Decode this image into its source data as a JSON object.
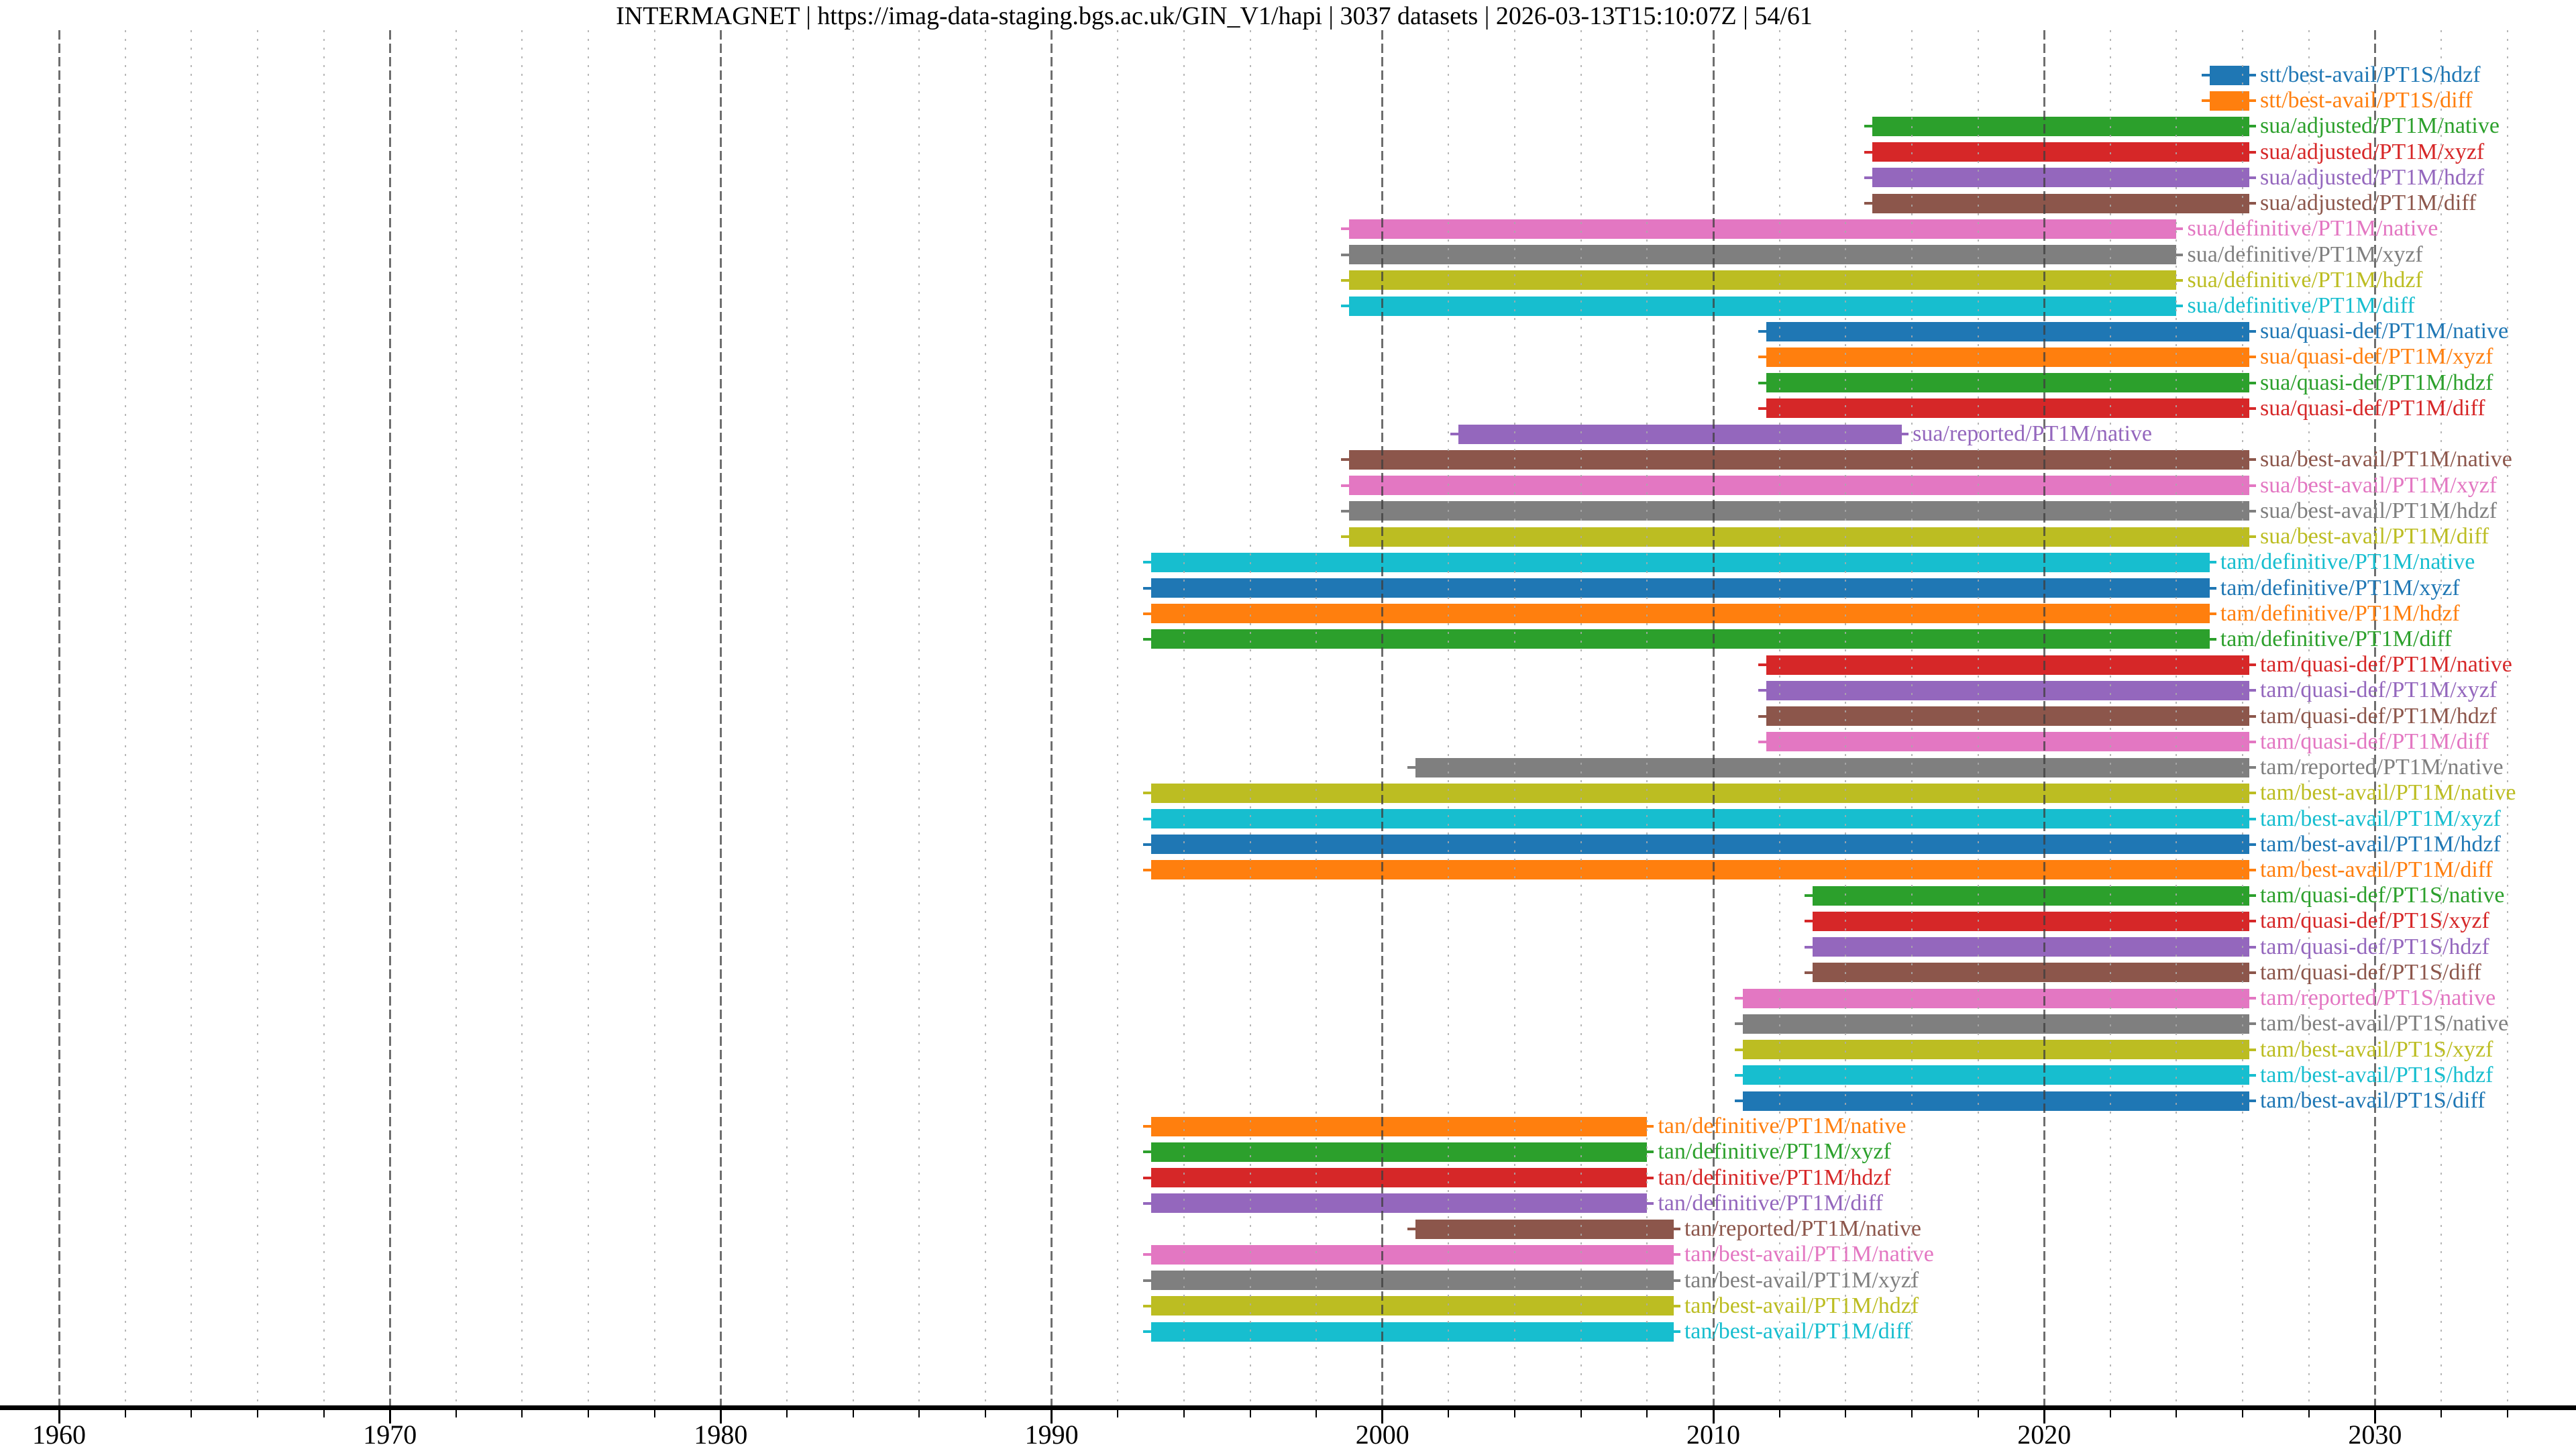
{
  "title": "INTERMAGNET | https://imag-data-staging.bgs.ac.uk/GIN_V1/hapi | 3037 datasets | 2026-03-13T15:10:07Z | 54/61",
  "chart_data": {
    "type": "timeline-bars",
    "title": "INTERMAGNET | https://imag-data-staging.bgs.ac.uk/GIN_V1/hapi | 3037 datasets | 2026-03-13T15:10:07Z | 54/61",
    "xlabel": "",
    "ylabel": "",
    "x_axis": {
      "tick_labels": [
        "1960",
        "1970",
        "1980",
        "1990",
        "2000",
        "2010",
        "2020",
        "2030"
      ],
      "major_ticks": [
        1960,
        1970,
        1980,
        1990,
        2000,
        2010,
        2020,
        2030
      ],
      "minor_tick_interval_years": 2,
      "range": [
        1958.2,
        2036.1
      ],
      "grid": "major solid-dashed dark, minor dotted light"
    },
    "palette_tab10": [
      "#1f77b4",
      "#ff7f0e",
      "#2ca02c",
      "#d62728",
      "#9467bd",
      "#8c564b",
      "#e377c2",
      "#7f7f7f",
      "#bcbd22",
      "#17becf"
    ],
    "rows": [
      {
        "label": "stt/best-avail/PT1S/hdzf",
        "color": "#1f77b4",
        "start": 2025.0,
        "end": 2026.2
      },
      {
        "label": "stt/best-avail/PT1S/diff",
        "color": "#ff7f0e",
        "start": 2025.0,
        "end": 2026.2
      },
      {
        "label": "sua/adjusted/PT1M/native",
        "color": "#2ca02c",
        "start": 2014.8,
        "end": 2026.2
      },
      {
        "label": "sua/adjusted/PT1M/xyzf",
        "color": "#d62728",
        "start": 2014.8,
        "end": 2026.2
      },
      {
        "label": "sua/adjusted/PT1M/hdzf",
        "color": "#9467bd",
        "start": 2014.8,
        "end": 2026.2
      },
      {
        "label": "sua/adjusted/PT1M/diff",
        "color": "#8c564b",
        "start": 2014.8,
        "end": 2026.2
      },
      {
        "label": "sua/definitive/PT1M/native",
        "color": "#e377c2",
        "start": 1999.0,
        "end": 2024.0
      },
      {
        "label": "sua/definitive/PT1M/xyzf",
        "color": "#7f7f7f",
        "start": 1999.0,
        "end": 2024.0
      },
      {
        "label": "sua/definitive/PT1M/hdzf",
        "color": "#bcbd22",
        "start": 1999.0,
        "end": 2024.0
      },
      {
        "label": "sua/definitive/PT1M/diff",
        "color": "#17becf",
        "start": 1999.0,
        "end": 2024.0
      },
      {
        "label": "sua/quasi-def/PT1M/native",
        "color": "#1f77b4",
        "start": 2011.6,
        "end": 2026.2
      },
      {
        "label": "sua/quasi-def/PT1M/xyzf",
        "color": "#ff7f0e",
        "start": 2011.6,
        "end": 2026.2
      },
      {
        "label": "sua/quasi-def/PT1M/hdzf",
        "color": "#2ca02c",
        "start": 2011.6,
        "end": 2026.2
      },
      {
        "label": "sua/quasi-def/PT1M/diff",
        "color": "#d62728",
        "start": 2011.6,
        "end": 2026.2
      },
      {
        "label": "sua/reported/PT1M/native",
        "color": "#9467bd",
        "start": 2002.3,
        "end": 2015.7
      },
      {
        "label": "sua/best-avail/PT1M/native",
        "color": "#8c564b",
        "start": 1999.0,
        "end": 2026.2
      },
      {
        "label": "sua/best-avail/PT1M/xyzf",
        "color": "#e377c2",
        "start": 1999.0,
        "end": 2026.2
      },
      {
        "label": "sua/best-avail/PT1M/hdzf",
        "color": "#7f7f7f",
        "start": 1999.0,
        "end": 2026.2
      },
      {
        "label": "sua/best-avail/PT1M/diff",
        "color": "#bcbd22",
        "start": 1999.0,
        "end": 2026.2
      },
      {
        "label": "tam/definitive/PT1M/native",
        "color": "#17becf",
        "start": 1993.0,
        "end": 2025.0
      },
      {
        "label": "tam/definitive/PT1M/xyzf",
        "color": "#1f77b4",
        "start": 1993.0,
        "end": 2025.0
      },
      {
        "label": "tam/definitive/PT1M/hdzf",
        "color": "#ff7f0e",
        "start": 1993.0,
        "end": 2025.0
      },
      {
        "label": "tam/definitive/PT1M/diff",
        "color": "#2ca02c",
        "start": 1993.0,
        "end": 2025.0
      },
      {
        "label": "tam/quasi-def/PT1M/native",
        "color": "#d62728",
        "start": 2011.6,
        "end": 2026.2
      },
      {
        "label": "tam/quasi-def/PT1M/xyzf",
        "color": "#9467bd",
        "start": 2011.6,
        "end": 2026.2
      },
      {
        "label": "tam/quasi-def/PT1M/hdzf",
        "color": "#8c564b",
        "start": 2011.6,
        "end": 2026.2
      },
      {
        "label": "tam/quasi-def/PT1M/diff",
        "color": "#e377c2",
        "start": 2011.6,
        "end": 2026.2
      },
      {
        "label": "tam/reported/PT1M/native",
        "color": "#7f7f7f",
        "start": 2001.0,
        "end": 2026.2
      },
      {
        "label": "tam/best-avail/PT1M/native",
        "color": "#bcbd22",
        "start": 1993.0,
        "end": 2026.2
      },
      {
        "label": "tam/best-avail/PT1M/xyzf",
        "color": "#17becf",
        "start": 1993.0,
        "end": 2026.2
      },
      {
        "label": "tam/best-avail/PT1M/hdzf",
        "color": "#1f77b4",
        "start": 1993.0,
        "end": 2026.2
      },
      {
        "label": "tam/best-avail/PT1M/diff",
        "color": "#ff7f0e",
        "start": 1993.0,
        "end": 2026.2
      },
      {
        "label": "tam/quasi-def/PT1S/native",
        "color": "#2ca02c",
        "start": 2013.0,
        "end": 2026.2
      },
      {
        "label": "tam/quasi-def/PT1S/xyzf",
        "color": "#d62728",
        "start": 2013.0,
        "end": 2026.2
      },
      {
        "label": "tam/quasi-def/PT1S/hdzf",
        "color": "#9467bd",
        "start": 2013.0,
        "end": 2026.2
      },
      {
        "label": "tam/quasi-def/PT1S/diff",
        "color": "#8c564b",
        "start": 2013.0,
        "end": 2026.2
      },
      {
        "label": "tam/reported/PT1S/native",
        "color": "#e377c2",
        "start": 2010.9,
        "end": 2026.2
      },
      {
        "label": "tam/best-avail/PT1S/native",
        "color": "#7f7f7f",
        "start": 2010.9,
        "end": 2026.2
      },
      {
        "label": "tam/best-avail/PT1S/xyzf",
        "color": "#bcbd22",
        "start": 2010.9,
        "end": 2026.2
      },
      {
        "label": "tam/best-avail/PT1S/hdzf",
        "color": "#17becf",
        "start": 2010.9,
        "end": 2026.2
      },
      {
        "label": "tam/best-avail/PT1S/diff",
        "color": "#1f77b4",
        "start": 2010.9,
        "end": 2026.2
      },
      {
        "label": "tan/definitive/PT1M/native",
        "color": "#ff7f0e",
        "start": 1993.0,
        "end": 2008.0
      },
      {
        "label": "tan/definitive/PT1M/xyzf",
        "color": "#2ca02c",
        "start": 1993.0,
        "end": 2008.0
      },
      {
        "label": "tan/definitive/PT1M/hdzf",
        "color": "#d62728",
        "start": 1993.0,
        "end": 2008.0
      },
      {
        "label": "tan/definitive/PT1M/diff",
        "color": "#9467bd",
        "start": 1993.0,
        "end": 2008.0
      },
      {
        "label": "tan/reported/PT1M/native",
        "color": "#8c564b",
        "start": 2001.0,
        "end": 2008.8
      },
      {
        "label": "tan/best-avail/PT1M/native",
        "color": "#e377c2",
        "start": 1993.0,
        "end": 2008.8
      },
      {
        "label": "tan/best-avail/PT1M/xyzf",
        "color": "#7f7f7f",
        "start": 1993.0,
        "end": 2008.8
      },
      {
        "label": "tan/best-avail/PT1M/hdzf",
        "color": "#bcbd22",
        "start": 1993.0,
        "end": 2008.8
      },
      {
        "label": "tan/best-avail/PT1M/diff",
        "color": "#17becf",
        "start": 1993.0,
        "end": 2008.8
      }
    ]
  }
}
